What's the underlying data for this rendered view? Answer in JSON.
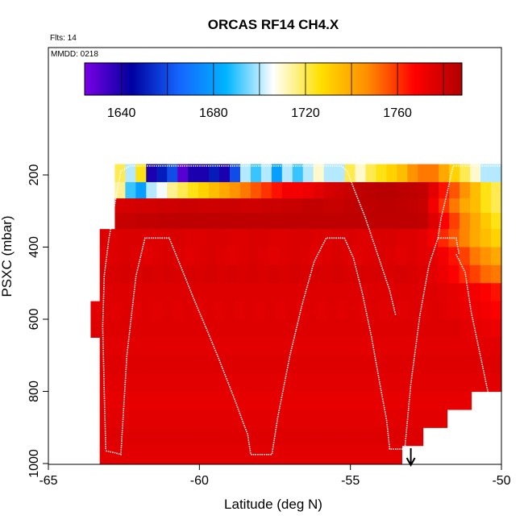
{
  "chart_data": {
    "type": "heatmap",
    "title": "ORCAS RF14 CH4.X",
    "annotations": {
      "flights": "Flts: 14",
      "date": "MMDD: 0218"
    },
    "xlabel": "Latitude (deg N)",
    "ylabel": "PSXC (mbar)",
    "xlim": [
      -65,
      -50
    ],
    "ylim": [
      1000,
      0
    ],
    "x_ticks": [
      -65,
      -60,
      -55,
      -50
    ],
    "y_ticks": [
      200,
      400,
      600,
      800,
      1000
    ],
    "colorbar": {
      "range": [
        1624,
        1788
      ],
      "ticks": [
        1640,
        1680,
        1720,
        1760
      ],
      "colors": [
        "#7a00e6",
        "#0000a0",
        "#1565ff",
        "#00b4ff",
        "#ffffff",
        "#ffe000",
        "#ff8c00",
        "#ff0000",
        "#b00000"
      ]
    },
    "heatmap_rows": [
      {
        "p": [
          170,
          220
        ],
        "x": [
          -62.8,
          -50.0
        ],
        "cells": [
          1720,
          1700,
          1725,
          1640,
          1650,
          1660,
          1630,
          1640,
          1640,
          1650,
          1640,
          1660,
          1700,
          1690,
          1700,
          1680,
          1700,
          1690,
          1700,
          1710,
          1700,
          1700,
          1720,
          1710,
          1720,
          1725,
          1730,
          1735,
          1745,
          1750,
          1750,
          1740,
          1730,
          1720,
          1710,
          1700,
          1700
        ]
      },
      {
        "p": [
          220,
          265
        ],
        "x": [
          -62.8,
          -50.0
        ],
        "cells": [
          1715,
          1690,
          1680,
          1700,
          1705,
          1715,
          1720,
          1725,
          1730,
          1735,
          1740,
          1745,
          1750,
          1755,
          1760,
          1765,
          1770,
          1770,
          1772,
          1775,
          1778,
          1780,
          1782,
          1784,
          1785,
          1786,
          1786,
          1785,
          1784,
          1783,
          1775,
          1765,
          1755,
          1745,
          1735,
          1725,
          1720
        ]
      },
      {
        "p": [
          265,
          305
        ],
        "x": [
          -62.8,
          -50.0
        ],
        "cells": [
          1778,
          1778,
          1779,
          1779,
          1780,
          1780,
          1781,
          1781,
          1780,
          1780,
          1781,
          1781,
          1780,
          1780,
          1781,
          1781,
          1782,
          1782,
          1783,
          1783,
          1782,
          1782,
          1783,
          1784,
          1784,
          1785,
          1785,
          1784,
          1783,
          1782,
          1770,
          1760,
          1750,
          1740,
          1735,
          1725,
          1720
        ]
      },
      {
        "p": [
          305,
          350
        ],
        "x": [
          -62.8,
          -50.0
        ],
        "cells": [
          1782,
          1782,
          1783,
          1783,
          1784,
          1784,
          1784,
          1784,
          1784,
          1784,
          1784,
          1784,
          1784,
          1784,
          1784,
          1784,
          1784,
          1784,
          1784,
          1784,
          1784,
          1784,
          1784,
          1784,
          1784,
          1784,
          1784,
          1784,
          1784,
          1783,
          1776,
          1768,
          1758,
          1748,
          1740,
          1732,
          1725
        ]
      },
      {
        "p": [
          350,
          400
        ],
        "x": [
          -63.3,
          -50.0
        ],
        "cells": [
          1776,
          1776,
          1777,
          1777,
          1776,
          1776,
          1777,
          1777,
          1776,
          1776,
          1777,
          1777,
          1776,
          1776,
          1777,
          1777,
          1776,
          1776,
          1777,
          1777,
          1776,
          1776,
          1777,
          1777,
          1776,
          1776,
          1777,
          1777,
          1776,
          1776,
          1775,
          1770,
          1762,
          1755,
          1748,
          1740,
          1735,
          1730
        ]
      },
      {
        "p": [
          400,
          450
        ],
        "x": [
          -63.3,
          -50.0
        ],
        "cells": [
          1775,
          1776,
          1777,
          1776,
          1775,
          1776,
          1777,
          1776,
          1775,
          1776,
          1777,
          1776,
          1775,
          1776,
          1777,
          1776,
          1775,
          1776,
          1777,
          1776,
          1775,
          1776,
          1777,
          1776,
          1775,
          1776,
          1777,
          1776,
          1775,
          1776,
          1775,
          1775,
          1770,
          1765,
          1758,
          1750,
          1745,
          1740
        ]
      },
      {
        "p": [
          450,
          500
        ],
        "x": [
          -63.3,
          -50.0
        ],
        "cells": [
          1778,
          1777,
          1778,
          1777,
          1778,
          1777,
          1778,
          1777,
          1778,
          1777,
          1778,
          1777,
          1778,
          1777,
          1778,
          1777,
          1778,
          1777,
          1778,
          1777,
          1778,
          1777,
          1778,
          1777,
          1778,
          1777,
          1778,
          1777,
          1778,
          1777,
          1776,
          1775,
          1772,
          1768,
          1762,
          1758,
          1752,
          1750
        ]
      },
      {
        "p": [
          500,
          550
        ],
        "x": [
          -63.3,
          -50.0
        ],
        "cells": [
          1776,
          1776,
          1776,
          1776,
          1776,
          1776,
          1776,
          1776,
          1776,
          1776,
          1776,
          1776,
          1776,
          1776,
          1776,
          1776,
          1776,
          1776,
          1776,
          1776,
          1776,
          1776,
          1776,
          1776,
          1776,
          1776,
          1776,
          1776,
          1776,
          1776,
          1776,
          1776,
          1775,
          1774,
          1772,
          1770,
          1768,
          1765
        ]
      },
      {
        "p": [
          550,
          600
        ],
        "x": [
          -63.6,
          -50.0
        ],
        "cells": [
          1775,
          1776,
          1775,
          1776,
          1775,
          1776,
          1775,
          1776,
          1775,
          1776,
          1775,
          1776,
          1775,
          1776,
          1775,
          1776,
          1775,
          1776,
          1775,
          1776,
          1775,
          1776,
          1775,
          1776,
          1775,
          1776,
          1775,
          1776,
          1775,
          1776,
          1775,
          1776,
          1775,
          1776,
          1775,
          1774,
          1773,
          1772,
          1770,
          1768
        ]
      },
      {
        "p": [
          600,
          650
        ],
        "x": [
          -63.6,
          -50.0
        ],
        "cells": [
          1776,
          1776,
          1776,
          1776,
          1776,
          1776,
          1776,
          1776,
          1776,
          1776,
          1776,
          1776,
          1776,
          1776,
          1776,
          1776,
          1776,
          1776,
          1776,
          1776,
          1776,
          1776,
          1776,
          1776,
          1776,
          1776,
          1776,
          1776,
          1776,
          1776,
          1776,
          1776,
          1776,
          1776,
          1776,
          1776,
          1775,
          1774,
          1773,
          1772
        ]
      },
      {
        "p": [
          650,
          700
        ],
        "x": [
          -63.3,
          -50.0
        ],
        "cells": [
          1775,
          1775,
          1775,
          1775,
          1775,
          1775,
          1775,
          1775,
          1775,
          1775,
          1775,
          1775,
          1775,
          1775,
          1775,
          1775,
          1775,
          1775,
          1775,
          1775,
          1775,
          1775,
          1775,
          1775,
          1775,
          1775,
          1775,
          1775,
          1775,
          1775,
          1775,
          1775,
          1775,
          1775,
          1775,
          1775,
          1775,
          1775
        ]
      },
      {
        "p": [
          700,
          750
        ],
        "x": [
          -63.3,
          -50.0
        ],
        "cells": [
          1776,
          1776,
          1776,
          1776,
          1776,
          1776,
          1776,
          1776,
          1776,
          1776,
          1776,
          1776,
          1776,
          1776,
          1776,
          1776,
          1776,
          1776,
          1776,
          1776,
          1776,
          1776,
          1776,
          1776,
          1776,
          1776,
          1776,
          1776,
          1776,
          1776,
          1776,
          1776,
          1776,
          1776,
          1776,
          1776,
          1776,
          1776
        ]
      },
      {
        "p": [
          750,
          800
        ],
        "x": [
          -63.3,
          -50.0
        ],
        "cells": [
          1775,
          1775,
          1775,
          1775,
          1775,
          1775,
          1775,
          1775,
          1775,
          1775,
          1775,
          1775,
          1775,
          1775,
          1775,
          1775,
          1775,
          1775,
          1775,
          1775,
          1775,
          1775,
          1775,
          1775,
          1775,
          1775,
          1775,
          1775,
          1775,
          1775,
          1775,
          1775,
          1775,
          1775,
          1775,
          1775,
          1775,
          1775
        ]
      },
      {
        "p": [
          800,
          850
        ],
        "x": [
          -63.3,
          -51.0
        ],
        "cells": [
          1774,
          1774,
          1774,
          1774,
          1774,
          1774,
          1774,
          1774,
          1774,
          1774,
          1774,
          1774,
          1774,
          1774,
          1774,
          1774,
          1774,
          1774,
          1774,
          1774,
          1774,
          1774,
          1774,
          1774,
          1774,
          1774,
          1774,
          1774,
          1774,
          1774,
          1774,
          1774,
          1774,
          1774,
          1774
        ]
      },
      {
        "p": [
          850,
          900
        ],
        "x": [
          -63.3,
          -51.8
        ],
        "cells": [
          1775,
          1775,
          1775,
          1775,
          1775,
          1775,
          1775,
          1775,
          1775,
          1775,
          1775,
          1775,
          1775,
          1775,
          1775,
          1775,
          1775,
          1775,
          1775,
          1775,
          1775,
          1775,
          1775,
          1775,
          1775,
          1775,
          1775,
          1775,
          1775,
          1775,
          1775,
          1775
        ]
      },
      {
        "p": [
          900,
          950
        ],
        "x": [
          -63.3,
          -52.6
        ],
        "cells": [
          1776,
          1776,
          1776,
          1776,
          1776,
          1776,
          1776,
          1776,
          1776,
          1776,
          1776,
          1776,
          1776,
          1776,
          1776,
          1776,
          1776,
          1776,
          1776,
          1776,
          1776,
          1776,
          1776,
          1776,
          1776,
          1776,
          1776,
          1776,
          1776,
          1776
        ]
      },
      {
        "p": [
          950,
          1000
        ],
        "x": [
          -63.3,
          -53.3
        ],
        "cells": [
          1775,
          1775,
          1775,
          1775,
          1775,
          1775,
          1775,
          1775,
          1775,
          1775,
          1775,
          1775,
          1775,
          1775,
          1775,
          1775,
          1775,
          1775,
          1775,
          1775,
          1775,
          1775,
          1775,
          1775,
          1775,
          1775,
          1775,
          1775
        ]
      }
    ],
    "flight_track": [
      [
        -63.1,
        960
      ],
      [
        -63.15,
        800
      ],
      [
        -63.2,
        620
      ],
      [
        -63.15,
        480
      ],
      [
        -63.0,
        380
      ],
      [
        -62.8,
        280
      ],
      [
        -62.6,
        190
      ],
      [
        -62.3,
        175
      ],
      [
        -61.0,
        175
      ],
      [
        -58.0,
        175
      ],
      [
        -56.0,
        175
      ],
      [
        -55.3,
        175
      ],
      [
        -55.1,
        190
      ],
      [
        -54.9,
        235
      ],
      [
        -54.5,
        320
      ],
      [
        -54.1,
        420
      ],
      [
        -53.7,
        520
      ],
      [
        -53.5,
        590
      ],
      null,
      [
        -63.1,
        965
      ],
      [
        -62.8,
        970
      ],
      [
        -62.6,
        975
      ],
      [
        -62.4,
        700
      ],
      [
        -62.1,
        480
      ],
      [
        -61.8,
        375
      ],
      [
        -61.0,
        375
      ],
      [
        -60.2,
        540
      ],
      [
        -59.4,
        700
      ],
      [
        -58.8,
        830
      ],
      [
        -58.4,
        920
      ],
      [
        -58.3,
        975
      ],
      [
        -57.6,
        975
      ],
      [
        -57.4,
        870
      ],
      [
        -57.0,
        700
      ],
      [
        -56.6,
        560
      ],
      [
        -56.2,
        440
      ],
      [
        -55.8,
        375
      ],
      [
        -55.2,
        375
      ],
      [
        -54.9,
        430
      ],
      [
        -54.6,
        530
      ],
      [
        -54.3,
        650
      ],
      [
        -54.0,
        790
      ],
      [
        -53.8,
        880
      ],
      [
        -53.7,
        960
      ],
      [
        -53.2,
        960
      ],
      [
        -53.0,
        780
      ],
      [
        -52.7,
        590
      ],
      [
        -52.4,
        450
      ],
      [
        -52.1,
        375
      ],
      [
        -51.5,
        375
      ],
      [
        -51.4,
        420
      ],
      null,
      [
        -52.1,
        375
      ],
      [
        -52.0,
        320
      ],
      [
        -51.8,
        250
      ],
      [
        -51.6,
        175
      ],
      [
        -50.9,
        175
      ],
      [
        -50.0,
        175
      ],
      null,
      [
        -51.5,
        420
      ],
      [
        -51.2,
        470
      ],
      [
        -51.0,
        580
      ],
      [
        -50.7,
        700
      ],
      [
        -50.4,
        820
      ]
    ],
    "arrow_marker": {
      "lat": -53.0,
      "p": 970
    }
  }
}
